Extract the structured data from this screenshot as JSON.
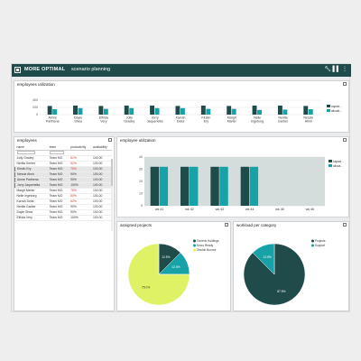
{
  "app": {
    "brand": "MORE OPTIMAL",
    "subtitle": "scenario planning"
  },
  "toolbar_icons": [
    "wrench-icon",
    "columns-icon",
    "kebab-icon"
  ],
  "panels": {
    "top": {
      "title": "employees utilization"
    },
    "employees": {
      "title": "employees"
    },
    "util": {
      "title": "employee utilization"
    },
    "assigned": {
      "title": "assigned projects"
    },
    "workload": {
      "title": "workload per category"
    }
  },
  "colors": {
    "dark": "#1f4b4b",
    "teal": "#17a2a7",
    "lime": "#dff266",
    "header": "#1f4b4b"
  },
  "table": {
    "columns": [
      "name",
      "team",
      "productivity",
      "availability"
    ],
    "rows": [
      {
        "name": "Jolly Gradey",
        "team": "Team MO",
        "prod": "61%",
        "avail": "100.00",
        "red": true
      },
      {
        "name": "Nerilla Semer",
        "team": "Team MO",
        "prod": "51%",
        "avail": "100.00",
        "red": true
      },
      {
        "name": "Kirstin Ery",
        "team": "Team MO",
        "prod": "70%",
        "avail": "100.00",
        "red": true,
        "sel": true
      },
      {
        "name": "Nessie Almir",
        "team": "Team MO",
        "prod": "90%",
        "avail": "100.00",
        "sel": true
      },
      {
        "name": "Aimre Parthena",
        "team": "Team MO",
        "prod": "90%",
        "avail": "100.00",
        "sel": true
      },
      {
        "name": "Jorry Jaquenetta",
        "team": "Team MO",
        "prod": "100%",
        "avail": "100.00",
        "sel": true
      },
      {
        "name": "Margit Marier",
        "team": "Team MO",
        "prod": "78%",
        "avail": "100.00",
        "red": true
      },
      {
        "name": "Nelle Ingeborg",
        "team": "Team MO",
        "prod": "50%",
        "avail": "100.00",
        "red": true
      },
      {
        "name": "Karrah Delia",
        "team": "Team MO",
        "prod": "62%",
        "avail": "100.00",
        "red": true
      },
      {
        "name": "Nerilla Garber",
        "team": "Team MO",
        "prod": "90%",
        "avail": "100.00"
      },
      {
        "name": "Dayle Shea",
        "team": "Team MO",
        "prod": "90%",
        "avail": "100.00"
      },
      {
        "name": "Elfrida Very",
        "team": "Team MO",
        "prod": "100%",
        "avail": "100.00"
      }
    ]
  },
  "chart_data": [
    {
      "type": "bar",
      "title": "employees utilization",
      "categories": [
        "Aimre Parthena",
        "Dayle Shea",
        "Elfrida Very",
        "Jolly Gradey",
        "Jorry Jaquenetta",
        "Karrah Delia",
        "Kirstin Ery",
        "Margit Marier",
        "Nelle Ingeborg",
        "Nerilla Garber",
        "Nessie Almir"
      ],
      "series": [
        {
          "name": "capaci...",
          "values": [
            240,
            250,
            240,
            250,
            250,
            240,
            250,
            240,
            250,
            250,
            240
          ],
          "color": "#1f4b4b"
        },
        {
          "name": "allocat...",
          "values": [
            150,
            180,
            160,
            180,
            180,
            180,
            160,
            160,
            130,
            140,
            150
          ],
          "color": "#17a2a7"
        }
      ],
      "ylim": [
        0,
        400
      ],
      "yticks": [
        0,
        200,
        400
      ],
      "legend": "right"
    },
    {
      "type": "bar",
      "title": "employee utilization",
      "categories": [
        "wk 41",
        "wk 42",
        "wk 43",
        "wk 44",
        "wk 45",
        "wk 46"
      ],
      "series": [
        {
          "name": "capaci...",
          "values": [
            32,
            32,
            32,
            32,
            0,
            0
          ],
          "color": "#1f4b4b"
        },
        {
          "name": "alloca...",
          "values": [
            32,
            32,
            32,
            32,
            0,
            0
          ],
          "color": "#17a2a7"
        }
      ],
      "ylim": [
        0,
        40
      ],
      "yticks": [
        0,
        10,
        20,
        30,
        40
      ],
      "legend": "right"
    },
    {
      "type": "pie",
      "title": "assigned projects",
      "labels": [
        "Generic Holdings",
        "Kinco Ready",
        "Zinchin Boonor"
      ],
      "values": [
        12.5,
        12.5,
        75.0
      ],
      "display": [
        "12.5%",
        "12.5%",
        "75.0%"
      ],
      "colors": [
        "#1f4b4b",
        "#17a2a7",
        "#dff266"
      ]
    },
    {
      "type": "pie",
      "title": "workload per category",
      "labels": [
        "Projects",
        "Support"
      ],
      "values": [
        87.5,
        12.5
      ],
      "display": [
        "87.5%",
        "12.5%"
      ],
      "colors": [
        "#1f4b4b",
        "#17a2a7"
      ]
    }
  ]
}
